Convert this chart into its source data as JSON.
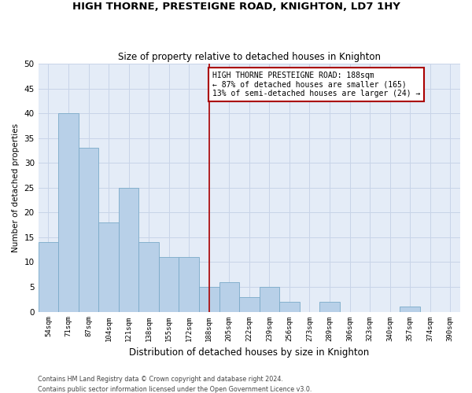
{
  "title": "HIGH THORNE, PRESTEIGNE ROAD, KNIGHTON, LD7 1HY",
  "subtitle": "Size of property relative to detached houses in Knighton",
  "xlabel": "Distribution of detached houses by size in Knighton",
  "ylabel": "Number of detached properties",
  "categories": [
    "54sqm",
    "71sqm",
    "87sqm",
    "104sqm",
    "121sqm",
    "138sqm",
    "155sqm",
    "172sqm",
    "188sqm",
    "205sqm",
    "222sqm",
    "239sqm",
    "256sqm",
    "273sqm",
    "289sqm",
    "306sqm",
    "323sqm",
    "340sqm",
    "357sqm",
    "374sqm",
    "390sqm"
  ],
  "values": [
    14,
    40,
    33,
    18,
    25,
    14,
    11,
    11,
    5,
    6,
    3,
    5,
    2,
    0,
    2,
    0,
    0,
    0,
    1,
    0,
    0
  ],
  "bar_color": "#b8d0e8",
  "bar_edgecolor": "#7aaac8",
  "marker_index": 8,
  "annotation_title": "HIGH THORNE PRESTEIGNE ROAD: 188sqm",
  "annotation_line1": "← 87% of detached houses are smaller (165)",
  "annotation_line2": "13% of semi-detached houses are larger (24) →",
  "vline_color": "#aa0000",
  "annotation_box_edgecolor": "#aa0000",
  "grid_color": "#c8d4e8",
  "background_color": "#e4ecf7",
  "ylim": [
    0,
    50
  ],
  "yticks": [
    0,
    5,
    10,
    15,
    20,
    25,
    30,
    35,
    40,
    45,
    50
  ],
  "footer1": "Contains HM Land Registry data © Crown copyright and database right 2024.",
  "footer2": "Contains public sector information licensed under the Open Government Licence v3.0."
}
